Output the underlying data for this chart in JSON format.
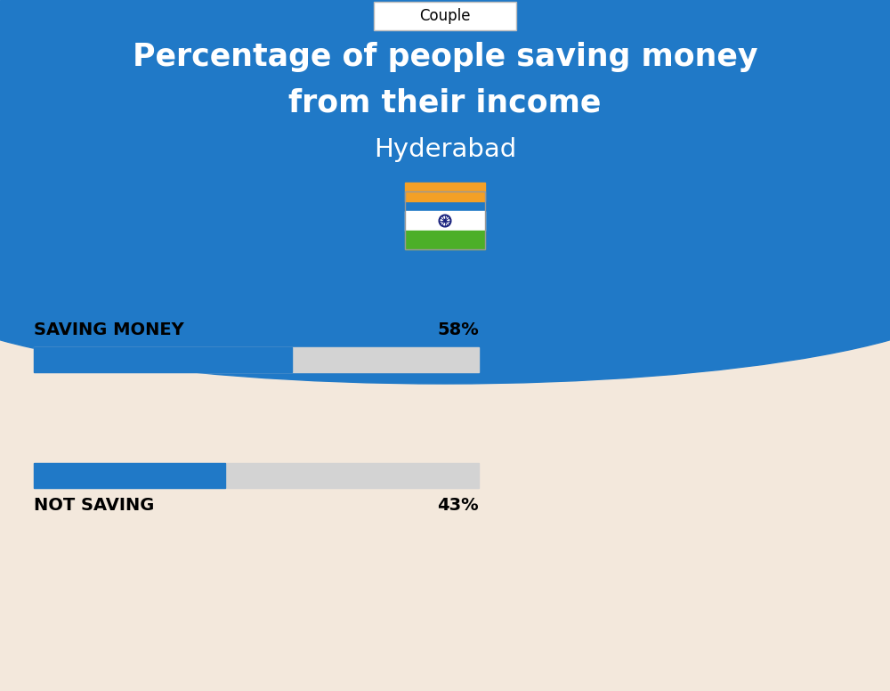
{
  "title_line1": "Percentage of people saving money",
  "title_line2": "from their income",
  "subtitle": "Hyderabad",
  "category_label": "Couple",
  "bg_top_color": "#2079C7",
  "bg_bottom_color": "#F3E8DC",
  "bar1_label": "SAVING MONEY",
  "bar1_value": 58,
  "bar1_pct": "58%",
  "bar2_label": "NOT SAVING",
  "bar2_value": 43,
  "bar2_pct": "43%",
  "bar_fill_color": "#2079C7",
  "bar_bg_color": "#D3D3D3",
  "bar_max": 100,
  "title_color": "#FFFFFF",
  "subtitle_color": "#FFFFFF",
  "label_color": "#000000",
  "category_box_color": "#FFFFFF",
  "category_text_color": "#000000",
  "fig_width": 10.0,
  "fig_height": 7.76,
  "dpi": 100
}
